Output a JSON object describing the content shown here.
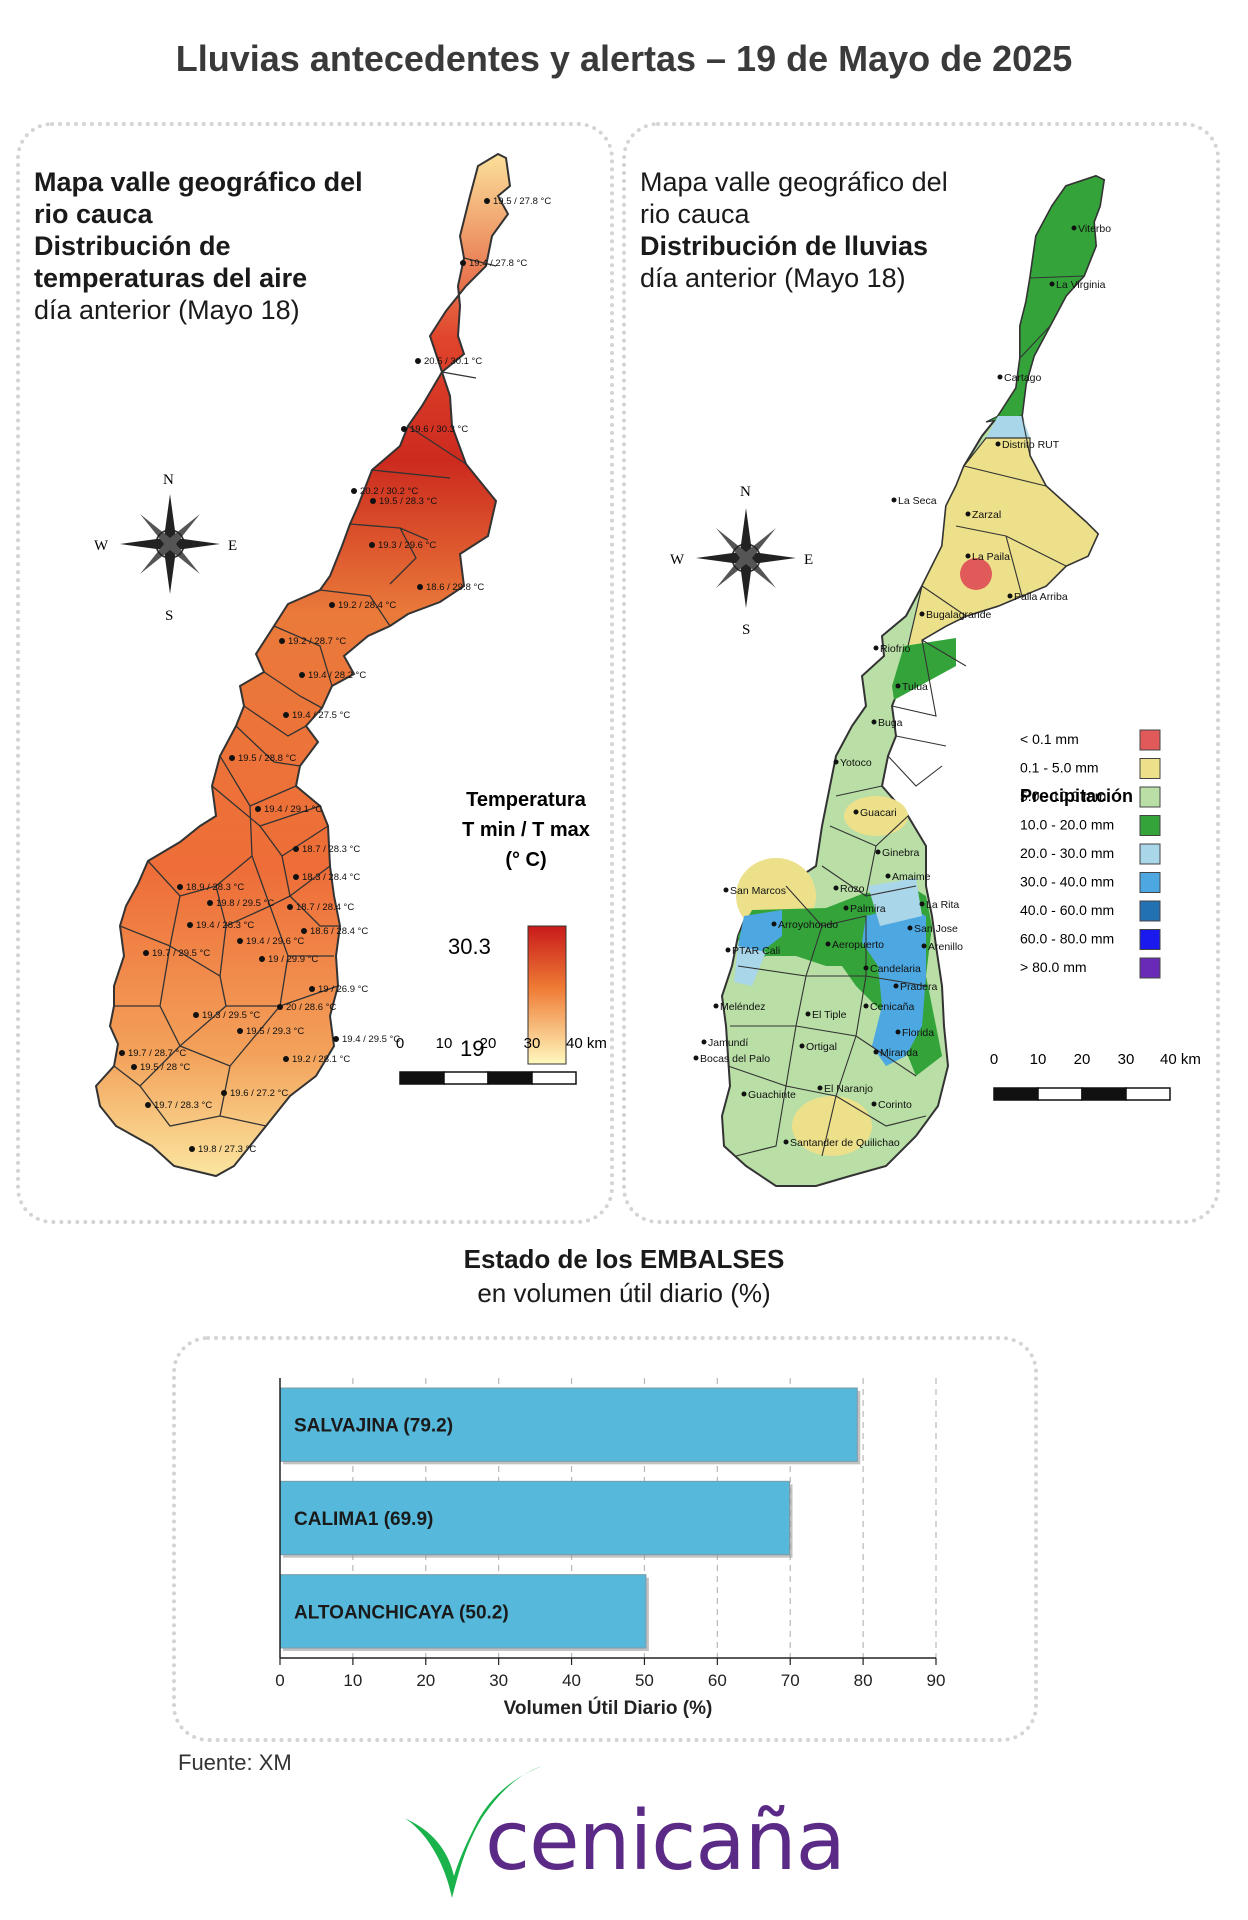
{
  "title": "Lluvias antecedentes y alertas – 19 de Mayo de 2025",
  "colors": {
    "bar": "#56b9db",
    "logo_green": "#19b24b",
    "logo_purple": "#5b2a86"
  },
  "temp_panel": {
    "title_line1": "Mapa valle geográfico del",
    "title_line2": "rio cauca",
    "title_line3": "Distribución de",
    "title_line4": "temperaturas del aire",
    "subtitle": "día anterior (Mayo 18)",
    "compass": {
      "n": "N",
      "s": "S",
      "e": "E",
      "w": "W"
    },
    "legend_title1": "Temperatura",
    "legend_title2": "T min / T max",
    "legend_title3": "(° C)",
    "legend_max": "30.3",
    "legend_min": "19",
    "scale_labels": [
      "0",
      "10",
      "20",
      "30",
      "40 km"
    ],
    "stations": [
      "19.5 / 27.8 °C",
      "19.4 / 27.8 °C",
      "20.5 / 30.1 °C",
      "19.6 / 30.3 °C",
      "20.2 / 30.2 °C",
      "19.5 / 28.3 °C",
      "19.3 / 29.6 °C",
      "18.6 / 29.8 °C",
      "19.2 / 28.4 °C",
      "19.2 / 28.7 °C",
      "19.4 / 28.2 °C",
      "19.4 / 27.5 °C",
      "19.5 / 28.8 °C",
      "19.4 / 29.1 °C",
      "18.7 / 28.3 °C",
      "18.3 / 28.4 °C",
      "18.9 / 28.3 °C",
      "19.8 / 29.5 °C",
      "18.7 / 28.4 °C",
      "19.4 / 28.3 °C",
      "18.6 / 28.4 °C",
      "19.4 / 29.6 °C",
      "19.7 / 29.5 °C",
      "19 / 29.9 °C",
      "19 / 26.9 °C",
      "19.3 / 29.5 °C",
      "20 / 28.6 °C",
      "19.5 / 29.3 °C",
      "19.4 / 29.5 °C",
      "19.7 / 28.7 °C",
      "19.5 / 28 °C",
      "19.2 / 28.1 °C",
      "19.7 / 28.3 °C",
      "19.6 / 27.2 °C",
      "19.8 / 27.3 °C"
    ]
  },
  "rain_panel": {
    "title_line1": "Mapa valle geográfico del",
    "title_line2": "rio cauca",
    "title_line3": "Distribución de lluvias",
    "subtitle": "día anterior (Mayo 18)",
    "compass": {
      "n": "N",
      "s": "S",
      "e": "E",
      "w": "W"
    },
    "legend_title": "Precipitación",
    "legend": [
      {
        "label": "< 0.1 mm",
        "color": "#e05a5a"
      },
      {
        "label": "0.1 - 5.0 mm",
        "color": "#ede08a"
      },
      {
        "label": "5.0 - 10.0 mm",
        "color": "#b9dfa6"
      },
      {
        "label": "10.0 - 20.0 mm",
        "color": "#34a43a"
      },
      {
        "label": "20.0 - 30.0 mm",
        "color": "#a9d6e8"
      },
      {
        "label": "30.0 - 40.0 mm",
        "color": "#4da8e2"
      },
      {
        "label": "40.0 - 60.0 mm",
        "color": "#2271b3"
      },
      {
        "label": "60.0 - 80.0 mm",
        "color": "#1a1aee"
      },
      {
        "label": "> 80.0 mm",
        "color": "#6a2ab8"
      }
    ],
    "scale_labels": [
      "0",
      "10",
      "20",
      "30",
      "40 km"
    ],
    "places": [
      "Viterbo",
      "La Virginia",
      "Cartago",
      "Distrito RUT",
      "La Seca",
      "Zarzal",
      "La Paila",
      "Paila Arriba",
      "Bugalagrande",
      "Riofrio",
      "Tulua",
      "Buga",
      "Yotoco",
      "Guacari",
      "Ginebra",
      "San Marcos",
      "Rozo",
      "Amaime",
      "La Rita",
      "Arroyohondo",
      "Palmira",
      "San Jose",
      "Aeropuerto",
      "Arenillo",
      "PTAR Cali",
      "Candelaria",
      "Pradera",
      "Meléndez",
      "El Tiple",
      "Cenicaña",
      "Florida",
      "Jamundí",
      "Bocas del Palo",
      "Ortigal",
      "Miranda",
      "Guachinte",
      "El Naranjo",
      "Corinto",
      "Santander de Quilichao"
    ]
  },
  "reservoirs": {
    "heading_bold": "Estado de los EMBALSES",
    "heading_sub": "en volumen útil diario (%)",
    "source": "Fuente: XM"
  },
  "chart_data": {
    "type": "bar",
    "orientation": "horizontal",
    "categories": [
      "SALVAJINA (79.2)",
      "CALIMA1 (69.9)",
      "ALTOANCHICAYA (50.2)"
    ],
    "values": [
      79.2,
      69.9,
      50.2
    ],
    "xlabel": "Volumen Útil Diario (%)",
    "xlim": [
      0,
      90
    ],
    "xticks": [
      0,
      10,
      20,
      30,
      40,
      50,
      60,
      70,
      80,
      90
    ],
    "grid": true
  },
  "logo": {
    "text": "cenicaña"
  }
}
